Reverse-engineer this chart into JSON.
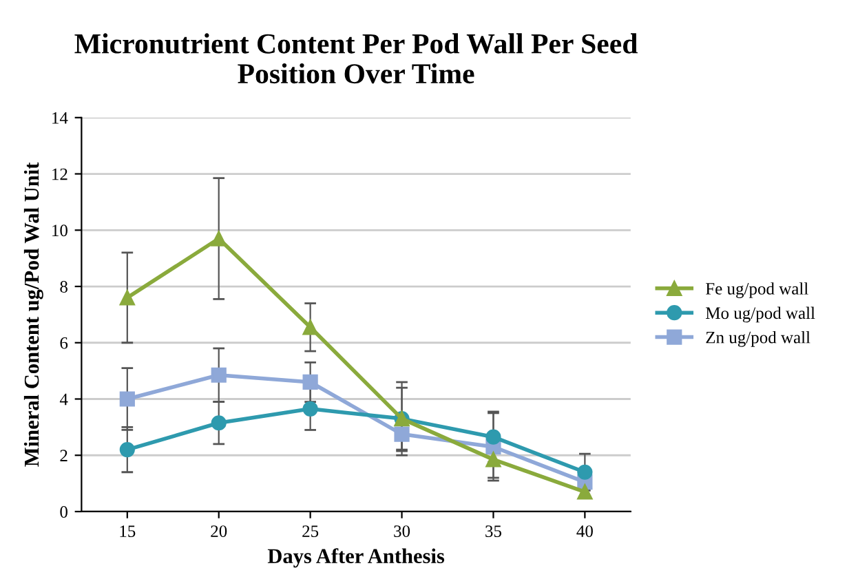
{
  "chart_data": {
    "type": "line",
    "title": "Micronutrient Content Per Pod Wall Per Seed\nPosition Over Time",
    "xlabel": "Days After Anthesis",
    "ylabel": "Mineral Content ug/Pod Wal Unit",
    "categories": [
      "15",
      "20",
      "25",
      "30",
      "35",
      "40"
    ],
    "series": [
      {
        "name": "Fe ug/pod wall",
        "color": "#8aaa3c",
        "marker": "triangle",
        "values": [
          7.6,
          9.7,
          6.55,
          3.3,
          1.85,
          0.7
        ],
        "errors": [
          1.6,
          2.15,
          0.85,
          1.3,
          0.65,
          null
        ]
      },
      {
        "name": "Mo ug/pod wall",
        "color": "#2e9aae",
        "marker": "circle",
        "values": [
          2.2,
          3.15,
          3.65,
          3.3,
          2.65,
          1.4
        ],
        "errors": [
          0.8,
          0.75,
          0.75,
          1.1,
          0.9,
          0.65
        ]
      },
      {
        "name": "Zn ug/pod wall",
        "color": "#8fa8d8",
        "marker": "square",
        "values": [
          4.0,
          4.85,
          4.6,
          2.75,
          2.3,
          1.05
        ],
        "errors": [
          1.1,
          0.95,
          0.7,
          0.6,
          1.2,
          null
        ]
      }
    ],
    "ylim": [
      0,
      14
    ],
    "yticks": [
      0,
      2,
      4,
      6,
      8,
      10,
      12,
      14
    ],
    "grid": "y",
    "legend": "right"
  }
}
